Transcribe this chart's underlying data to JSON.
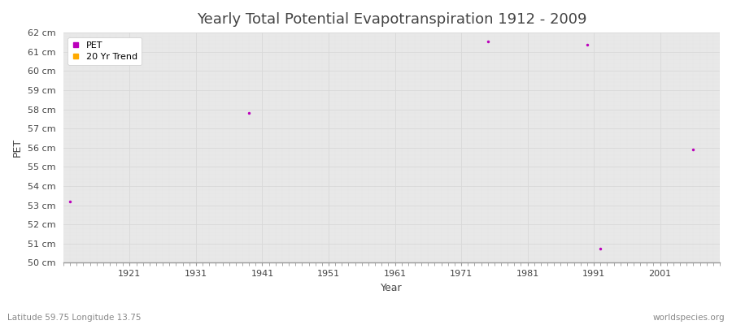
{
  "title": "Yearly Total Potential Evapotranspiration 1912 - 2009",
  "xlabel": "Year",
  "ylabel": "PET",
  "subtitle_left": "Latitude 59.75 Longitude 13.75",
  "subtitle_right": "worldspecies.org",
  "ylim": [
    50,
    62
  ],
  "xlim": [
    1911,
    2010
  ],
  "ytick_labels": [
    "50 cm",
    "51 cm",
    "52 cm",
    "53 cm",
    "54 cm",
    "55 cm",
    "56 cm",
    "57 cm",
    "58 cm",
    "59 cm",
    "60 cm",
    "61 cm",
    "62 cm"
  ],
  "ytick_values": [
    50,
    51,
    52,
    53,
    54,
    55,
    56,
    57,
    58,
    59,
    60,
    61,
    62
  ],
  "xtick_values": [
    1921,
    1931,
    1941,
    1951,
    1961,
    1971,
    1981,
    1991,
    2001
  ],
  "pet_data": [
    {
      "year": 1912,
      "value": 53.2
    },
    {
      "year": 1939,
      "value": 57.8
    },
    {
      "year": 1975,
      "value": 61.55
    },
    {
      "year": 1990,
      "value": 61.35
    },
    {
      "year": 1992,
      "value": 50.75
    },
    {
      "year": 2006,
      "value": 55.9
    }
  ],
  "pet_color": "#bb00bb",
  "trend_color": "#ffaa00",
  "fig_bg_color": "#ffffff",
  "plot_bg_color": "#e8e8e8",
  "grid_major_color": "#d8d8d8",
  "grid_minor_color": "#e0e0e0",
  "legend_pet_label": "PET",
  "legend_trend_label": "20 Yr Trend",
  "title_fontsize": 13,
  "axis_label_fontsize": 9,
  "tick_fontsize": 8,
  "marker_size": 2.5,
  "spine_color": "#999999",
  "text_color": "#444444",
  "subtitle_color": "#888888"
}
